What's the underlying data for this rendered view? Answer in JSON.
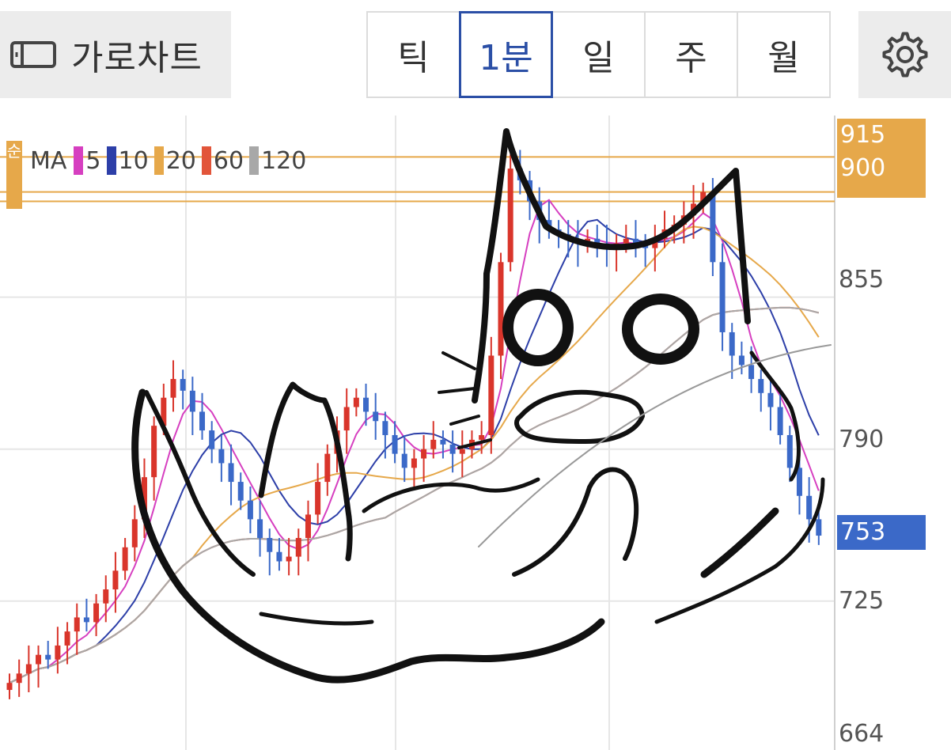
{
  "toolbar": {
    "landscape_label": "가로차트",
    "periods": [
      "틱",
      "1분",
      "일",
      "주",
      "월"
    ],
    "active_period": "1분"
  },
  "ma_legend": {
    "side_tag": "순",
    "title": "MA",
    "items": [
      {
        "label": "5",
        "color": "#d63fc0"
      },
      {
        "label": "10",
        "color": "#2d3fa8"
      },
      {
        "label": "20",
        "color": "#e6a84a"
      },
      {
        "label": "60",
        "color": "#e2553a"
      },
      {
        "label": "120",
        "color": "#a8a8a8"
      }
    ]
  },
  "price_axis": {
    "ticks": [
      "855",
      "790",
      "725",
      "664"
    ],
    "orange_tags": [
      "915",
      "900"
    ],
    "current_price": "753"
  },
  "colors": {
    "up": "#d9352b",
    "down": "#3b69c8",
    "accent_orange": "#e6a84a",
    "accent_blue": "#3b69c8"
  },
  "chart_data": {
    "type": "candlestick",
    "y_range": [
      664,
      930
    ],
    "horizontal_lines": [
      915,
      900,
      896
    ],
    "ma_periods": [
      5,
      10,
      20,
      60,
      120
    ],
    "close": [
      690,
      694,
      698,
      702,
      700,
      706,
      712,
      718,
      716,
      724,
      730,
      738,
      748,
      760,
      778,
      800,
      812,
      820,
      815,
      806,
      798,
      790,
      784,
      776,
      768,
      760,
      752,
      746,
      742,
      744,
      752,
      762,
      776,
      788,
      798,
      808,
      812,
      806,
      802,
      796,
      788,
      782,
      786,
      790,
      794,
      792,
      788,
      790,
      794,
      796,
      830,
      870,
      910,
      905,
      896,
      888,
      884,
      882,
      880,
      878,
      880,
      878,
      876,
      878,
      880,
      878,
      876,
      880,
      884,
      886,
      890,
      895,
      900,
      870,
      840,
      830,
      826,
      820,
      814,
      808,
      796,
      782,
      770,
      760,
      753
    ]
  }
}
